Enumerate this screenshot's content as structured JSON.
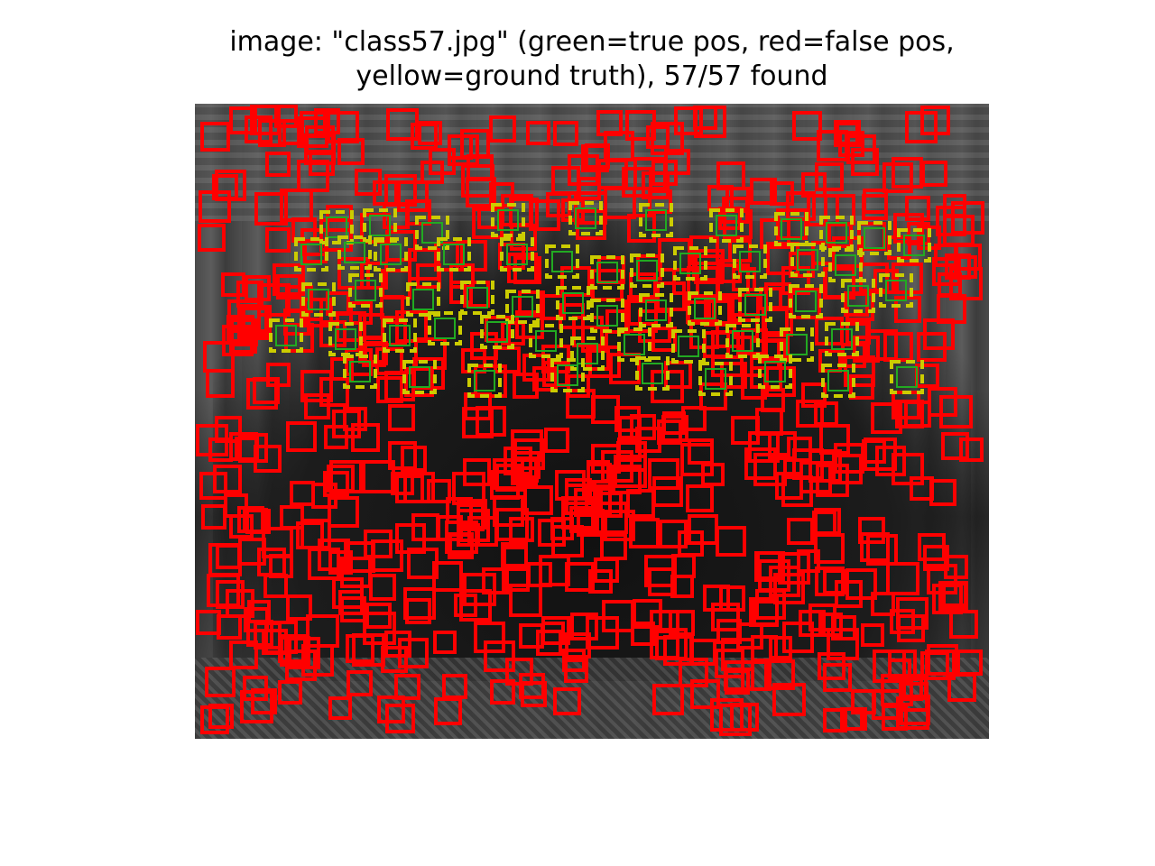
{
  "figure": {
    "title_line1": "image: \"class57.jpg\" (green=true pos, red=false pos,",
    "title_line2": "yellow=ground truth), 57/57 found",
    "image_file": "class57.jpg",
    "found": 57,
    "total": 57
  },
  "legend_colors": {
    "true_pos": "#22aa22",
    "false_pos": "#ff0000",
    "ground_truth": "#cccc00"
  }
}
